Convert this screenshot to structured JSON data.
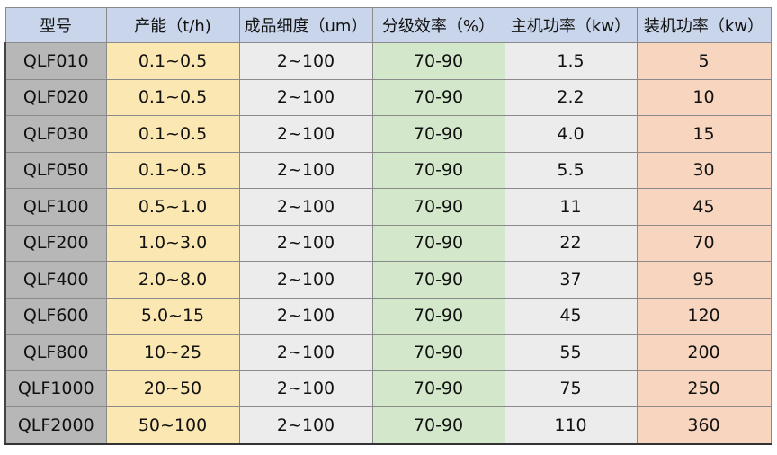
{
  "headers": [
    "型号",
    "产能（t/h)",
    "成品细度（um）",
    "分级效率（%）",
    "主机功率（kw）",
    "装机功率（kw）"
  ],
  "rows": [
    [
      "QLF010",
      "0.1~0.5",
      "2~100",
      "70-90",
      "1.5",
      "5"
    ],
    [
      "QLF020",
      "0.1~0.5",
      "2~100",
      "70-90",
      "2.2",
      "10"
    ],
    [
      "QLF030",
      "0.1~0.5",
      "2~100",
      "70-90",
      "4.0",
      "15"
    ],
    [
      "QLF050",
      "0.1~0.5",
      "2~100",
      "70-90",
      "5.5",
      "30"
    ],
    [
      "QLF100",
      "0.5~1.0",
      "2~100",
      "70-90",
      "11",
      "45"
    ],
    [
      "QLF200",
      "1.0~3.0",
      "2~100",
      "70-90",
      "22",
      "70"
    ],
    [
      "QLF400",
      "2.0~8.0",
      "2~100",
      "70-90",
      "37",
      "95"
    ],
    [
      "QLF600",
      "5.0~15",
      "2~100",
      "70-90",
      "45",
      "120"
    ],
    [
      "QLF800",
      "10~25",
      "2~100",
      "70-90",
      "55",
      "200"
    ],
    [
      "QLF1000",
      "20~50",
      "2~100",
      "70-90",
      "75",
      "250"
    ],
    [
      "QLF2000",
      "50~100",
      "2~100",
      "70-90",
      "110",
      "360"
    ]
  ],
  "colors": {
    "header": "#c8d5ea",
    "model": "#b7b7b7",
    "capacity": "#fbe7b1",
    "fineness": "#ececec",
    "efficiency": "#d3e8cb",
    "main_power": "#ececec",
    "installed_power": "#f8d5be"
  }
}
